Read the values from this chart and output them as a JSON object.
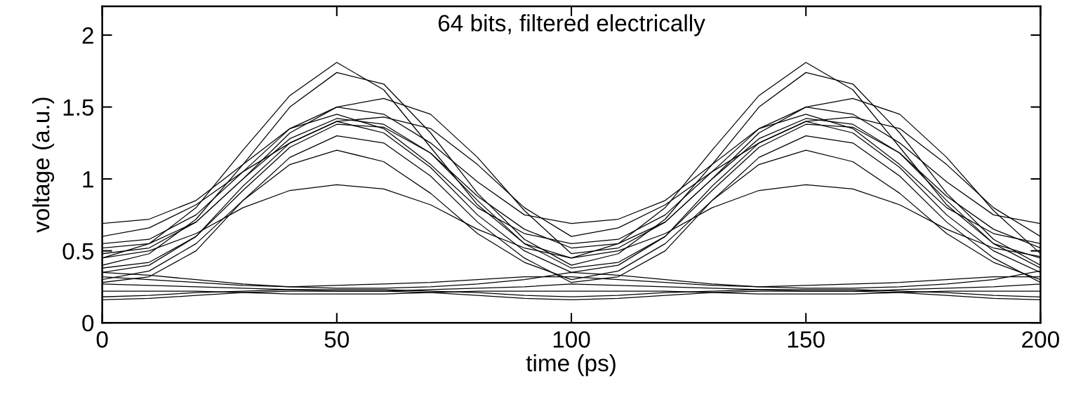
{
  "chart_data": {
    "type": "line",
    "xlabel": "time (ps)",
    "ylabel": "voltage (a.u.)",
    "annotations": [
      "64 bits, filtered electrically"
    ],
    "x": [
      0,
      10,
      20,
      30,
      40,
      50,
      60,
      70,
      80,
      90,
      100,
      110,
      120,
      130,
      140,
      150,
      160,
      170,
      180,
      190,
      200
    ],
    "xlim": [
      0,
      200
    ],
    "xticks": [
      0,
      50,
      100,
      150,
      200
    ],
    "ylim": [
      0,
      2.2
    ],
    "yticks": [
      0,
      0.5,
      1,
      1.5,
      2
    ],
    "grid": false,
    "line_style": "solid",
    "series": [
      {
        "color": "#000000",
        "values": [
          0.45,
          0.55,
          0.8,
          1.2,
          1.58,
          1.81,
          1.62,
          1.22,
          0.82,
          0.55,
          0.45,
          0.55,
          0.8,
          1.2,
          1.58,
          1.81,
          1.62,
          1.22,
          0.82,
          0.55,
          0.45
        ]
      },
      {
        "color": "#000000",
        "values": [
          0.4,
          0.48,
          0.72,
          1.1,
          1.5,
          1.74,
          1.66,
          1.32,
          0.9,
          0.58,
          0.4,
          0.48,
          0.72,
          1.1,
          1.5,
          1.74,
          1.66,
          1.32,
          0.9,
          0.58,
          0.4
        ]
      },
      {
        "color": "#000000",
        "values": [
          0.48,
          0.52,
          0.7,
          1.0,
          1.32,
          1.5,
          1.56,
          1.45,
          1.15,
          0.78,
          0.48,
          0.52,
          0.7,
          1.0,
          1.32,
          1.5,
          1.56,
          1.45,
          1.15,
          0.78,
          0.48
        ]
      },
      {
        "color": "#000000",
        "values": [
          0.69,
          0.72,
          0.85,
          1.1,
          1.35,
          1.5,
          1.45,
          1.25,
          0.98,
          0.75,
          0.69,
          0.72,
          0.85,
          1.1,
          1.35,
          1.5,
          1.45,
          1.25,
          0.98,
          0.75,
          0.69
        ]
      },
      {
        "color": "#000000",
        "values": [
          0.6,
          0.66,
          0.82,
          1.05,
          1.25,
          1.4,
          1.43,
          1.35,
          1.1,
          0.8,
          0.6,
          0.66,
          0.82,
          1.05,
          1.25,
          1.4,
          1.43,
          1.35,
          1.1,
          0.8,
          0.6
        ]
      },
      {
        "color": "#000000",
        "values": [
          0.55,
          0.58,
          0.75,
          1.05,
          1.35,
          1.45,
          1.35,
          1.1,
          0.8,
          0.62,
          0.55,
          0.58,
          0.75,
          1.05,
          1.35,
          1.45,
          1.35,
          1.1,
          0.8,
          0.62,
          0.55
        ]
      },
      {
        "color": "#000000",
        "values": [
          0.35,
          0.4,
          0.6,
          0.95,
          1.25,
          1.4,
          1.32,
          1.08,
          0.75,
          0.5,
          0.35,
          0.4,
          0.6,
          0.95,
          1.25,
          1.4,
          1.32,
          1.08,
          0.75,
          0.5,
          0.35
        ]
      },
      {
        "color": "#000000",
        "values": [
          0.3,
          0.36,
          0.55,
          0.85,
          1.1,
          1.2,
          1.12,
          0.9,
          0.62,
          0.42,
          0.3,
          0.36,
          0.55,
          0.85,
          1.1,
          1.2,
          1.12,
          0.9,
          0.62,
          0.42,
          0.3
        ]
      },
      {
        "color": "#000000",
        "values": [
          0.45,
          0.5,
          0.62,
          0.8,
          0.92,
          0.96,
          0.93,
          0.82,
          0.65,
          0.52,
          0.45,
          0.5,
          0.62,
          0.8,
          0.92,
          0.96,
          0.93,
          0.82,
          0.65,
          0.52,
          0.46
        ]
      },
      {
        "color": "#000000",
        "values": [
          0.28,
          0.32,
          0.5,
          0.85,
          1.15,
          1.3,
          1.25,
          1.02,
          0.7,
          0.45,
          0.28,
          0.32,
          0.5,
          0.85,
          1.15,
          1.3,
          1.25,
          1.02,
          0.7,
          0.45,
          0.28
        ]
      },
      {
        "color": "#000000",
        "values": [
          0.38,
          0.42,
          0.6,
          0.92,
          1.22,
          1.38,
          1.36,
          1.18,
          0.85,
          0.55,
          0.38,
          0.42,
          0.6,
          0.92,
          1.22,
          1.38,
          1.36,
          1.18,
          0.85,
          0.55,
          0.38
        ]
      },
      {
        "color": "#000000",
        "values": [
          0.52,
          0.55,
          0.7,
          1.0,
          1.28,
          1.42,
          1.38,
          1.18,
          0.88,
          0.65,
          0.52,
          0.55,
          0.7,
          1.0,
          1.28,
          1.42,
          1.38,
          1.18,
          0.88,
          0.65,
          0.52
        ]
      },
      {
        "color": "#000000",
        "values": [
          0.35,
          0.33,
          0.3,
          0.27,
          0.25,
          0.24,
          0.24,
          0.25,
          0.27,
          0.3,
          0.35,
          0.33,
          0.3,
          0.27,
          0.25,
          0.24,
          0.24,
          0.25,
          0.27,
          0.3,
          0.36
        ]
      },
      {
        "color": "#000000",
        "values": [
          0.18,
          0.19,
          0.21,
          0.22,
          0.23,
          0.23,
          0.23,
          0.22,
          0.21,
          0.19,
          0.18,
          0.19,
          0.21,
          0.22,
          0.23,
          0.23,
          0.23,
          0.22,
          0.21,
          0.19,
          0.18
        ]
      },
      {
        "color": "#000000",
        "values": [
          0.27,
          0.26,
          0.25,
          0.24,
          0.23,
          0.22,
          0.22,
          0.23,
          0.24,
          0.25,
          0.27,
          0.26,
          0.25,
          0.24,
          0.23,
          0.22,
          0.22,
          0.23,
          0.24,
          0.25,
          0.27
        ]
      },
      {
        "color": "#000000",
        "values": [
          0.16,
          0.17,
          0.19,
          0.21,
          0.22,
          0.22,
          0.22,
          0.21,
          0.19,
          0.17,
          0.16,
          0.17,
          0.19,
          0.21,
          0.22,
          0.22,
          0.22,
          0.21,
          0.19,
          0.17,
          0.16
        ]
      },
      {
        "color": "#000000",
        "values": [
          0.32,
          0.3,
          0.28,
          0.26,
          0.25,
          0.26,
          0.27,
          0.28,
          0.3,
          0.32,
          0.32,
          0.3,
          0.28,
          0.26,
          0.25,
          0.26,
          0.27,
          0.28,
          0.3,
          0.32,
          0.32
        ]
      },
      {
        "color": "#000000",
        "values": [
          0.22,
          0.22,
          0.22,
          0.21,
          0.2,
          0.2,
          0.2,
          0.21,
          0.22,
          0.22,
          0.22,
          0.22,
          0.22,
          0.21,
          0.2,
          0.2,
          0.2,
          0.21,
          0.22,
          0.22,
          0.22
        ]
      }
    ]
  }
}
